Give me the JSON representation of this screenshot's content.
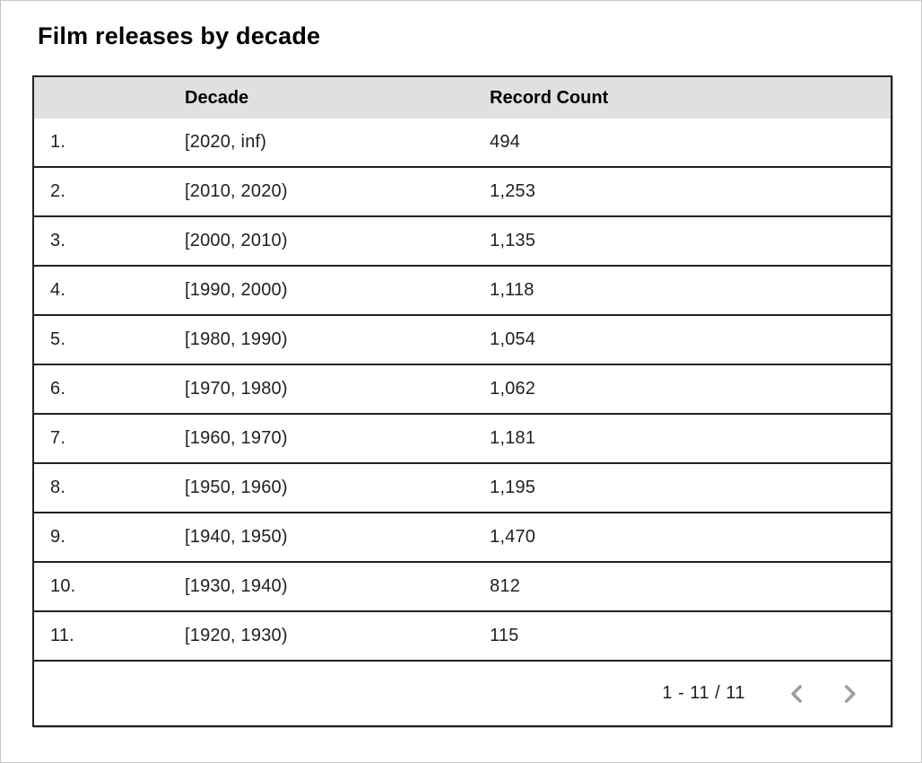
{
  "title": "Film releases by decade",
  "table": {
    "headers": {
      "index": "",
      "decade": "Decade",
      "record_count": "Record Count"
    },
    "rows": [
      {
        "index": "1.",
        "decade": "[2020, inf)",
        "count": "494"
      },
      {
        "index": "2.",
        "decade": "[2010, 2020)",
        "count": "1,253"
      },
      {
        "index": "3.",
        "decade": "[2000, 2010)",
        "count": "1,135"
      },
      {
        "index": "4.",
        "decade": "[1990, 2000)",
        "count": "1,118"
      },
      {
        "index": "5.",
        "decade": "[1980, 1990)",
        "count": "1,054"
      },
      {
        "index": "6.",
        "decade": "[1970, 1980)",
        "count": "1,062"
      },
      {
        "index": "7.",
        "decade": "[1960, 1970)",
        "count": "1,181"
      },
      {
        "index": "8.",
        "decade": "[1950, 1960)",
        "count": "1,195"
      },
      {
        "index": "9.",
        "decade": "[1940, 1950)",
        "count": "1,470"
      },
      {
        "index": "10.",
        "decade": "[1930, 1940)",
        "count": "812"
      },
      {
        "index": "11.",
        "decade": "[1920, 1930)",
        "count": "115"
      }
    ]
  },
  "pagination": {
    "range_label": "1 - 11 / 11",
    "prev_icon": "chevron-left",
    "next_icon": "chevron-right"
  },
  "colors": {
    "header_bg": "#e0e0e0",
    "table_border": "#222222",
    "body_text": "#212121",
    "chevron": "#9e9e9e",
    "frame_border": "#c6c6c6"
  },
  "chart_data": {
    "type": "table",
    "title": "Film releases by decade",
    "columns": [
      "Decade",
      "Record Count"
    ],
    "rows": [
      [
        "[2020, inf)",
        494
      ],
      [
        "[2010, 2020)",
        1253
      ],
      [
        "[2000, 2010)",
        1135
      ],
      [
        "[1990, 2000)",
        1118
      ],
      [
        "[1980, 1990)",
        1054
      ],
      [
        "[1970, 1980)",
        1062
      ],
      [
        "[1960, 1970)",
        1181
      ],
      [
        "[1950, 1960)",
        1195
      ],
      [
        "[1940, 1950)",
        1470
      ],
      [
        "[1930, 1940)",
        812
      ],
      [
        "[1920, 1930)",
        115
      ]
    ],
    "pagination": "1 - 11 / 11"
  }
}
